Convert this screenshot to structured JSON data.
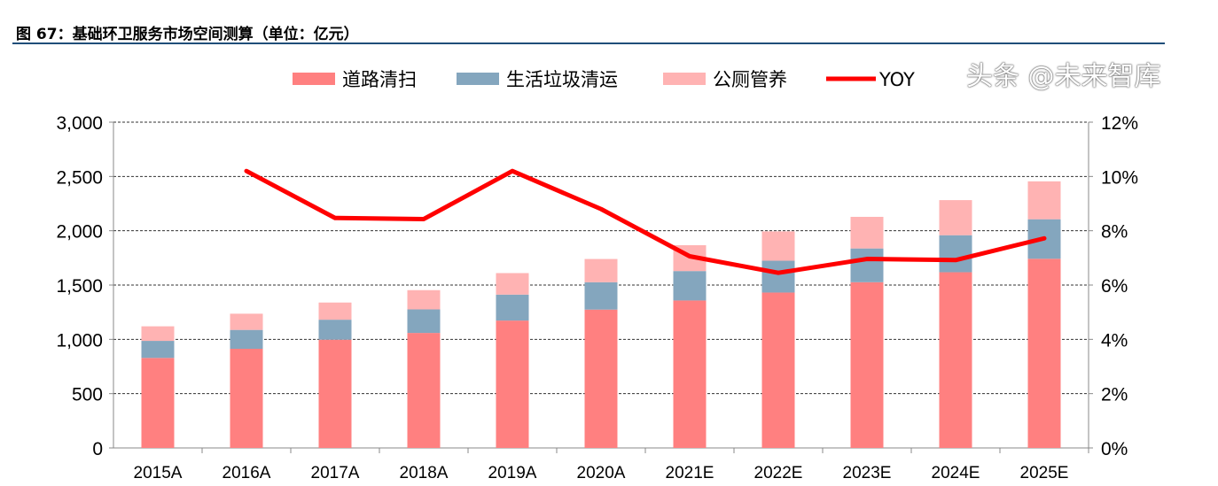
{
  "title": "图 67：基础环卫服务市场空间测算（单位：亿元）",
  "watermark": "头条 @未来智库",
  "chart_data": {
    "type": "bar",
    "stacked": true,
    "categories": [
      "2015A",
      "2016A",
      "2017A",
      "2018A",
      "2019A",
      "2020A",
      "2021E",
      "2022E",
      "2023E",
      "2024E",
      "2025E"
    ],
    "series": [
      {
        "name": "道路清扫",
        "type": "bar",
        "axis": "left",
        "color": "#FF8080",
        "values": [
          829,
          913,
          997,
          1059,
          1173,
          1274,
          1358,
          1431,
          1526,
          1618,
          1742
        ]
      },
      {
        "name": "生活垃圾清运",
        "type": "bar",
        "axis": "left",
        "color": "#84A6BE",
        "values": [
          157,
          174,
          184,
          217,
          239,
          252,
          271,
          293,
          311,
          341,
          364
        ]
      },
      {
        "name": "公厕管养",
        "type": "bar",
        "axis": "left",
        "color": "#FFB3B3",
        "values": [
          134,
          149,
          158,
          177,
          198,
          214,
          238,
          270,
          291,
          323,
          349
        ]
      },
      {
        "name": "YOY",
        "type": "line",
        "axis": "right",
        "color": "#FF0000",
        "values": [
          null,
          10.2,
          8.47,
          8.43,
          10.2,
          8.8,
          7.06,
          6.45,
          6.96,
          6.92,
          7.72
        ]
      }
    ],
    "ylim": [
      0,
      3000
    ],
    "yticks": [
      "0",
      "500",
      "1,000",
      "1,500",
      "2,000",
      "2,500",
      "3,000"
    ],
    "y2lim": [
      0,
      12
    ],
    "y2ticks": [
      "0%",
      "2%",
      "4%",
      "6%",
      "8%",
      "10%",
      "12%"
    ],
    "grid": true,
    "legend": "top"
  }
}
